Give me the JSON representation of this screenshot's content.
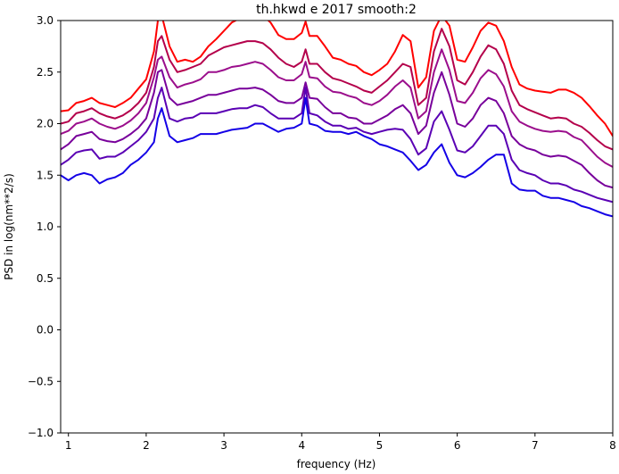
{
  "chart_data": {
    "type": "line",
    "title": "th.hkwd e 2017 smooth:2",
    "xlabel": "frequency (Hz)",
    "ylabel": "PSD in log(nm**2/s)",
    "xlim": [
      0.9,
      8
    ],
    "ylim": [
      -1.0,
      3.0
    ],
    "xticks": [
      1,
      2,
      3,
      4,
      5,
      6,
      7,
      8
    ],
    "xtick_labels": [
      "1",
      "2",
      "3",
      "4",
      "5",
      "6",
      "7",
      "8"
    ],
    "yticks": [
      -1.0,
      -0.5,
      0.0,
      0.5,
      1.0,
      1.5,
      2.0,
      2.5,
      3.0
    ],
    "ytick_labels": [
      "−1.0",
      "−0.5",
      "0.0",
      "0.5",
      "1.0",
      "1.5",
      "2.0",
      "2.5",
      "3.0"
    ],
    "grid": false,
    "x": [
      0.9,
      1.0,
      1.1,
      1.2,
      1.3,
      1.4,
      1.5,
      1.6,
      1.7,
      1.8,
      1.9,
      2.0,
      2.1,
      2.15,
      2.2,
      2.3,
      2.4,
      2.5,
      2.6,
      2.7,
      2.8,
      2.9,
      3.0,
      3.1,
      3.2,
      3.3,
      3.4,
      3.5,
      3.6,
      3.7,
      3.8,
      3.9,
      4.0,
      4.05,
      4.1,
      4.2,
      4.3,
      4.4,
      4.5,
      4.6,
      4.7,
      4.8,
      4.9,
      5.0,
      5.1,
      5.2,
      5.3,
      5.4,
      5.5,
      5.6,
      5.7,
      5.8,
      5.9,
      6.0,
      6.1,
      6.2,
      6.3,
      6.4,
      6.5,
      6.6,
      6.7,
      6.8,
      6.9,
      7.0,
      7.1,
      7.2,
      7.3,
      7.4,
      7.5,
      7.6,
      7.7,
      7.8,
      7.9,
      8.0
    ],
    "series": [
      {
        "color": "#ff0000",
        "values": [
          2.12,
          2.13,
          2.2,
          2.22,
          2.25,
          2.2,
          2.18,
          2.16,
          2.2,
          2.25,
          2.34,
          2.43,
          2.7,
          3.0,
          3.05,
          2.75,
          2.6,
          2.62,
          2.6,
          2.65,
          2.75,
          2.82,
          2.9,
          2.98,
          3.02,
          3.05,
          3.1,
          3.05,
          2.98,
          2.86,
          2.82,
          2.82,
          2.88,
          2.99,
          2.85,
          2.85,
          2.75,
          2.64,
          2.62,
          2.58,
          2.56,
          2.5,
          2.47,
          2.52,
          2.58,
          2.7,
          2.86,
          2.8,
          2.35,
          2.45,
          2.9,
          3.05,
          2.95,
          2.62,
          2.6,
          2.74,
          2.9,
          2.98,
          2.95,
          2.8,
          2.55,
          2.38,
          2.34,
          2.32,
          2.31,
          2.3,
          2.33,
          2.33,
          2.3,
          2.25,
          2.17,
          2.08,
          2.0,
          1.88
        ]
      },
      {
        "color": "#b4004b",
        "values": [
          2.0,
          2.02,
          2.1,
          2.12,
          2.15,
          2.1,
          2.07,
          2.05,
          2.08,
          2.13,
          2.2,
          2.3,
          2.55,
          2.8,
          2.85,
          2.62,
          2.5,
          2.52,
          2.55,
          2.58,
          2.66,
          2.7,
          2.74,
          2.76,
          2.78,
          2.8,
          2.8,
          2.78,
          2.72,
          2.64,
          2.58,
          2.55,
          2.6,
          2.72,
          2.58,
          2.58,
          2.5,
          2.44,
          2.42,
          2.39,
          2.36,
          2.32,
          2.3,
          2.36,
          2.42,
          2.5,
          2.58,
          2.55,
          2.18,
          2.25,
          2.7,
          2.92,
          2.75,
          2.42,
          2.38,
          2.5,
          2.65,
          2.76,
          2.72,
          2.58,
          2.32,
          2.18,
          2.14,
          2.11,
          2.08,
          2.05,
          2.06,
          2.05,
          2.0,
          1.97,
          1.91,
          1.84,
          1.78,
          1.75
        ]
      },
      {
        "color": "#9b0e8c",
        "values": [
          1.9,
          1.93,
          2.0,
          2.02,
          2.05,
          2.0,
          1.97,
          1.95,
          1.98,
          2.03,
          2.1,
          2.2,
          2.45,
          2.62,
          2.65,
          2.45,
          2.35,
          2.38,
          2.4,
          2.43,
          2.5,
          2.5,
          2.52,
          2.55,
          2.56,
          2.58,
          2.6,
          2.58,
          2.52,
          2.45,
          2.42,
          2.42,
          2.48,
          2.6,
          2.45,
          2.44,
          2.36,
          2.31,
          2.3,
          2.27,
          2.25,
          2.2,
          2.18,
          2.22,
          2.28,
          2.36,
          2.42,
          2.35,
          2.05,
          2.12,
          2.5,
          2.72,
          2.52,
          2.22,
          2.2,
          2.3,
          2.44,
          2.52,
          2.48,
          2.36,
          2.12,
          2.02,
          1.98,
          1.95,
          1.93,
          1.92,
          1.93,
          1.92,
          1.87,
          1.84,
          1.76,
          1.68,
          1.62,
          1.58
        ]
      },
      {
        "color": "#78009b",
        "values": [
          1.75,
          1.8,
          1.88,
          1.9,
          1.92,
          1.85,
          1.83,
          1.82,
          1.85,
          1.9,
          1.96,
          2.05,
          2.3,
          2.5,
          2.52,
          2.25,
          2.18,
          2.2,
          2.22,
          2.25,
          2.28,
          2.28,
          2.3,
          2.32,
          2.34,
          2.34,
          2.35,
          2.33,
          2.28,
          2.22,
          2.2,
          2.2,
          2.25,
          2.4,
          2.25,
          2.24,
          2.16,
          2.1,
          2.1,
          2.06,
          2.05,
          2.0,
          2.0,
          2.04,
          2.08,
          2.14,
          2.18,
          2.1,
          1.9,
          1.98,
          2.3,
          2.5,
          2.28,
          2.0,
          1.97,
          2.05,
          2.18,
          2.25,
          2.22,
          2.1,
          1.88,
          1.8,
          1.76,
          1.74,
          1.7,
          1.68,
          1.69,
          1.68,
          1.64,
          1.6,
          1.52,
          1.45,
          1.4,
          1.38
        ]
      },
      {
        "color": "#5a00b4",
        "values": [
          1.6,
          1.65,
          1.72,
          1.74,
          1.75,
          1.66,
          1.68,
          1.68,
          1.72,
          1.78,
          1.84,
          1.92,
          2.05,
          2.25,
          2.35,
          2.05,
          2.02,
          2.05,
          2.06,
          2.1,
          2.1,
          2.1,
          2.12,
          2.14,
          2.15,
          2.15,
          2.18,
          2.16,
          2.1,
          2.05,
          2.05,
          2.05,
          2.1,
          2.35,
          2.1,
          2.08,
          2.02,
          1.98,
          1.98,
          1.95,
          1.96,
          1.92,
          1.9,
          1.92,
          1.94,
          1.95,
          1.94,
          1.85,
          1.7,
          1.76,
          2.02,
          2.12,
          1.94,
          1.74,
          1.72,
          1.78,
          1.88,
          1.98,
          1.98,
          1.9,
          1.65,
          1.55,
          1.52,
          1.5,
          1.45,
          1.42,
          1.42,
          1.4,
          1.36,
          1.34,
          1.31,
          1.28,
          1.26,
          1.24
        ]
      },
      {
        "color": "#1400e6",
        "values": [
          1.5,
          1.45,
          1.5,
          1.52,
          1.5,
          1.42,
          1.46,
          1.48,
          1.52,
          1.6,
          1.65,
          1.72,
          1.82,
          2.05,
          2.15,
          1.88,
          1.82,
          1.84,
          1.86,
          1.9,
          1.9,
          1.9,
          1.92,
          1.94,
          1.95,
          1.96,
          2.0,
          2.0,
          1.96,
          1.92,
          1.95,
          1.96,
          2.0,
          2.25,
          2.0,
          1.98,
          1.93,
          1.92,
          1.92,
          1.9,
          1.92,
          1.88,
          1.85,
          1.8,
          1.78,
          1.75,
          1.72,
          1.64,
          1.55,
          1.6,
          1.72,
          1.8,
          1.62,
          1.5,
          1.48,
          1.52,
          1.58,
          1.65,
          1.7,
          1.7,
          1.42,
          1.36,
          1.35,
          1.35,
          1.3,
          1.28,
          1.28,
          1.26,
          1.24,
          1.2,
          1.18,
          1.15,
          1.12,
          1.1
        ]
      }
    ]
  }
}
